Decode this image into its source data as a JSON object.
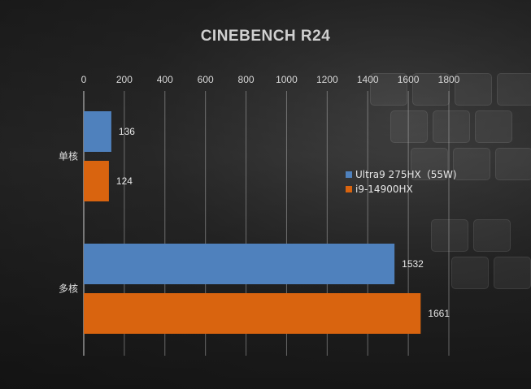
{
  "chart_data": {
    "type": "bar",
    "orientation": "horizontal",
    "title": "CINEBENCH R24",
    "categories": [
      "单核",
      "多核"
    ],
    "series": [
      {
        "name": "Ultra9 275HX（55W)",
        "color": "#4f81bd",
        "values": [
          136,
          1532
        ]
      },
      {
        "name": "i9-14900HX",
        "color": "#d9640f",
        "values": [
          124,
          1661
        ]
      }
    ],
    "xlim": [
      0,
      1800
    ],
    "xticks": [
      0,
      200,
      400,
      600,
      800,
      1000,
      1200,
      1400,
      1600,
      1800
    ],
    "xaxis_position": "top",
    "grid": true,
    "legend_position": "right"
  }
}
